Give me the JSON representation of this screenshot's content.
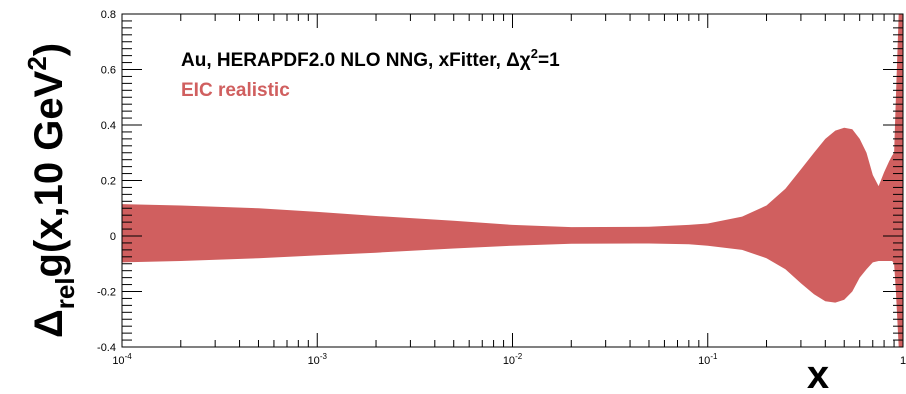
{
  "chart_data": {
    "type": "area",
    "title": "",
    "legend": {
      "header": "Au, HERAPDF2.0 NLO NNG, xFitter, Δχ²=1",
      "header_main": "Au, HERAPDF2.0 NLO NNG, xFitter, Δχ",
      "header_sup": "2",
      "header_tail": "=1",
      "placement": "top-left",
      "entries": [
        {
          "label": "EIC realistic",
          "color": "#d05f5f"
        }
      ]
    },
    "xlabel": "x",
    "ylabel": {
      "delta": "Δ",
      "sub": "rel",
      "main": "g(x,10 GeV",
      "sup": "2",
      "close": ")"
    },
    "xscale": "log",
    "xlim": [
      0.0001,
      1
    ],
    "ylim": [
      -0.4,
      0.8
    ],
    "x_tick_labels": [
      {
        "value": 0.0001,
        "base": "10",
        "exp": "-4"
      },
      {
        "value": 0.001,
        "base": "10",
        "exp": "-3"
      },
      {
        "value": 0.01,
        "base": "10",
        "exp": "-2"
      },
      {
        "value": 0.1,
        "base": "10",
        "exp": "-1"
      },
      {
        "value": 1,
        "base": "1",
        "exp": ""
      }
    ],
    "y_tick_labels": [
      {
        "value": 0.8,
        "label": "0.8"
      },
      {
        "value": 0.6,
        "label": "0.6"
      },
      {
        "value": 0.4,
        "label": "0.4"
      },
      {
        "value": 0.2,
        "label": "0.2"
      },
      {
        "value": 0,
        "label": "0"
      },
      {
        "value": -0.2,
        "label": "-0.2"
      },
      {
        "value": -0.4,
        "label": "-0.4"
      }
    ],
    "grid": false,
    "series": [
      {
        "name": "EIC realistic",
        "color": "#d05f5f",
        "band": [
          {
            "x": 0.0001,
            "lower": -0.095,
            "upper": 0.115
          },
          {
            "x": 0.0002,
            "lower": -0.09,
            "upper": 0.11
          },
          {
            "x": 0.0005,
            "lower": -0.08,
            "upper": 0.1
          },
          {
            "x": 0.001,
            "lower": -0.07,
            "upper": 0.087
          },
          {
            "x": 0.002,
            "lower": -0.06,
            "upper": 0.072
          },
          {
            "x": 0.005,
            "lower": -0.045,
            "upper": 0.055
          },
          {
            "x": 0.01,
            "lower": -0.035,
            "upper": 0.04
          },
          {
            "x": 0.02,
            "lower": -0.028,
            "upper": 0.032
          },
          {
            "x": 0.05,
            "lower": -0.027,
            "upper": 0.033
          },
          {
            "x": 0.08,
            "lower": -0.03,
            "upper": 0.04
          },
          {
            "x": 0.1,
            "lower": -0.035,
            "upper": 0.045
          },
          {
            "x": 0.15,
            "lower": -0.05,
            "upper": 0.07
          },
          {
            "x": 0.2,
            "lower": -0.08,
            "upper": 0.11
          },
          {
            "x": 0.25,
            "lower": -0.12,
            "upper": 0.17
          },
          {
            "x": 0.3,
            "lower": -0.17,
            "upper": 0.24
          },
          {
            "x": 0.35,
            "lower": -0.21,
            "upper": 0.3
          },
          {
            "x": 0.4,
            "lower": -0.235,
            "upper": 0.35
          },
          {
            "x": 0.45,
            "lower": -0.24,
            "upper": 0.38
          },
          {
            "x": 0.5,
            "lower": -0.23,
            "upper": 0.39
          },
          {
            "x": 0.55,
            "lower": -0.2,
            "upper": 0.385
          },
          {
            "x": 0.6,
            "lower": -0.15,
            "upper": 0.35
          },
          {
            "x": 0.65,
            "lower": -0.12,
            "upper": 0.3
          },
          {
            "x": 0.7,
            "lower": -0.095,
            "upper": 0.22
          },
          {
            "x": 0.75,
            "lower": -0.09,
            "upper": 0.18
          },
          {
            "x": 0.8,
            "lower": -0.09,
            "upper": 0.23
          },
          {
            "x": 0.85,
            "lower": -0.09,
            "upper": 0.27
          },
          {
            "x": 0.88,
            "lower": -0.09,
            "upper": 0.29
          },
          {
            "x": 0.9,
            "lower": -0.1,
            "upper": 0.3
          },
          {
            "x": 0.92,
            "lower": -0.2,
            "upper": 0.5
          },
          {
            "x": 0.95,
            "lower": -0.4,
            "upper": 0.8
          },
          {
            "x": 0.999,
            "lower": -0.4,
            "upper": 0.8
          }
        ]
      }
    ]
  }
}
